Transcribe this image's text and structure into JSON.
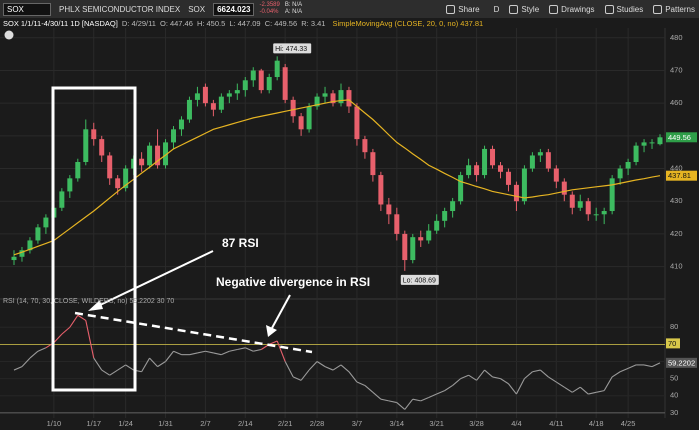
{
  "toolbar": {
    "symbol": "SOX",
    "name": "PHLX SEMICONDUCTOR INDEX",
    "exchange_symbol": "SOX",
    "last": "6624.023",
    "change": "-2.3589",
    "change_pct": "-0.04%",
    "bid": "B: N/A",
    "ask": "A: N/A",
    "buttons": [
      "Share",
      "D",
      "Style",
      "Drawings",
      "Studies",
      "Patterns"
    ]
  },
  "chart_data": [
    {
      "type": "candlestick",
      "title": "SOX 1/1/11-4/30/11 1D [NASDAQ]",
      "date_label": "D: 4/29/11",
      "ohlc_labels": [
        "O:",
        "H:",
        "L:",
        "C:"
      ],
      "range_label": "R: 3.41",
      "hi_label": "Hi:",
      "lo_label": "Lo:",
      "annotations": [
        "87 RSI",
        "Negative divergence in RSI"
      ],
      "up_color": "#3dbb60",
      "down_color": "#e8606c",
      "grid": true,
      "ylim": [
        401,
        483
      ],
      "yticks": [
        410,
        420,
        430,
        440,
        450,
        460,
        470,
        480
      ],
      "categories": [
        null,
        null,
        null,
        null,
        null,
        "1/10",
        null,
        null,
        null,
        null,
        "1/17",
        null,
        null,
        null,
        "1/24",
        null,
        null,
        null,
        null,
        "1/31",
        null,
        null,
        null,
        null,
        "2/7",
        null,
        null,
        null,
        null,
        "2/14",
        null,
        null,
        null,
        null,
        "2/21",
        null,
        null,
        null,
        "2/28",
        null,
        null,
        null,
        null,
        "3/7",
        null,
        null,
        null,
        null,
        "3/14",
        null,
        null,
        null,
        null,
        "3/21",
        null,
        null,
        null,
        null,
        "3/28",
        null,
        null,
        null,
        null,
        "4/4",
        null,
        null,
        null,
        null,
        "4/11",
        null,
        null,
        null,
        null,
        "4/18",
        null,
        null,
        null,
        "4/25",
        null,
        null,
        null,
        null
      ],
      "candles": [
        [
          412,
          415,
          410.5,
          413
        ],
        [
          413,
          416,
          411.5,
          415
        ],
        [
          415,
          419,
          414,
          418
        ],
        [
          418,
          423,
          417,
          422
        ],
        [
          422,
          426,
          420,
          425
        ],
        [
          425,
          429,
          423,
          428
        ],
        [
          428,
          434,
          427,
          433
        ],
        [
          433,
          438,
          431,
          437
        ],
        [
          437,
          443,
          436,
          442
        ],
        [
          442,
          455,
          441,
          452
        ],
        [
          452,
          454,
          447,
          449
        ],
        [
          449,
          450,
          442,
          444
        ],
        [
          444,
          445,
          435,
          437
        ],
        [
          437,
          438,
          432,
          434
        ],
        [
          434,
          441,
          433,
          440
        ],
        [
          440,
          444,
          438,
          443
        ],
        [
          443,
          445,
          439,
          441
        ],
        [
          441,
          448,
          440,
          447
        ],
        [
          447,
          452,
          440,
          441
        ],
        [
          441,
          449,
          440,
          448
        ],
        [
          448,
          453,
          446,
          452
        ],
        [
          452,
          456,
          450,
          455
        ],
        [
          455,
          462,
          454,
          461
        ],
        [
          461,
          465,
          459,
          463
        ],
        [
          465,
          466,
          459,
          460
        ],
        [
          460,
          461,
          456,
          458
        ],
        [
          458,
          463,
          457,
          462
        ],
        [
          462,
          464,
          460,
          463
        ],
        [
          463,
          466,
          461,
          464
        ],
        [
          464,
          468,
          462,
          467
        ],
        [
          467,
          471,
          465,
          470
        ],
        [
          470,
          470.5,
          463,
          464
        ],
        [
          464,
          469,
          463,
          468
        ],
        [
          468,
          474.33,
          467,
          473
        ],
        [
          471,
          472,
          460,
          461
        ],
        [
          461,
          462,
          454,
          456
        ],
        [
          456,
          457,
          450,
          452
        ],
        [
          452,
          460,
          451,
          459
        ],
        [
          459,
          463,
          458,
          462
        ],
        [
          462,
          465,
          460,
          463
        ],
        [
          463,
          464,
          459,
          460
        ],
        [
          460,
          466,
          459,
          464
        ],
        [
          464,
          465,
          457,
          459
        ],
        [
          459,
          460,
          447,
          449
        ],
        [
          449,
          450,
          443,
          445
        ],
        [
          445,
          446,
          436,
          438
        ],
        [
          438,
          439,
          427,
          429
        ],
        [
          429,
          431,
          423,
          426
        ],
        [
          426,
          428,
          418,
          420
        ],
        [
          420,
          421,
          408.69,
          412
        ],
        [
          412,
          420,
          411,
          419
        ],
        [
          419,
          421,
          416,
          418
        ],
        [
          418,
          423,
          417,
          421
        ],
        [
          421,
          426,
          420,
          424
        ],
        [
          424,
          428,
          422,
          427
        ],
        [
          427,
          431,
          425,
          430
        ],
        [
          430,
          439,
          429,
          438
        ],
        [
          438,
          443,
          437,
          441
        ],
        [
          441,
          442,
          436,
          438
        ],
        [
          438,
          447,
          437,
          446
        ],
        [
          446,
          447,
          440,
          441
        ],
        [
          441,
          442,
          437,
          439
        ],
        [
          439,
          440,
          433,
          435
        ],
        [
          435,
          436,
          427,
          430
        ],
        [
          430,
          441,
          429,
          440
        ],
        [
          440,
          445,
          439,
          444
        ],
        [
          444,
          446,
          442,
          445
        ],
        [
          445,
          446,
          439,
          440
        ],
        [
          440,
          441,
          434,
          436
        ],
        [
          436,
          437,
          430,
          432
        ],
        [
          432,
          433,
          426,
          428
        ],
        [
          428,
          432,
          427,
          430
        ],
        [
          430,
          431,
          424,
          426
        ],
        [
          426,
          428,
          424,
          426
        ],
        [
          426,
          428,
          423,
          427
        ],
        [
          427,
          438,
          426,
          437
        ],
        [
          437,
          441,
          435,
          440
        ],
        [
          440,
          443,
          438,
          442
        ],
        [
          442,
          448,
          441,
          447
        ],
        [
          447,
          449,
          445,
          448
        ],
        [
          448,
          449,
          446,
          448
        ],
        [
          447.46,
          450.5,
          447.09,
          449.56
        ]
      ],
      "series": [
        {
          "name": "SimpleMovingAvg (CLOSE, 20, 0, no)",
          "color": "#e6b422",
          "values": [
            413.6,
            414.4,
            415.3,
            416.2,
            417.1,
            418,
            419.8,
            421.6,
            423.4,
            425.2,
            427,
            429,
            431,
            433,
            434.9,
            436.7,
            438.6,
            440.4,
            442.3,
            444.1,
            446,
            447.2,
            448.4,
            449.6,
            450.8,
            452,
            452.7,
            453.4,
            454.1,
            454.8,
            455.5,
            456,
            456.5,
            457,
            457.5,
            458,
            458.5,
            459,
            459.5,
            460,
            460.5,
            460.8,
            461,
            459,
            457,
            455,
            452.7,
            450.3,
            448,
            446.3,
            444.5,
            442.8,
            441,
            439.8,
            438.5,
            437.3,
            436,
            435.3,
            434.5,
            433.8,
            433,
            432.5,
            432,
            431.5,
            431,
            431.3,
            431.7,
            432,
            432.5,
            433,
            433.5,
            433.8,
            434.1,
            434.4,
            434.7,
            435,
            435.5,
            436,
            436.5,
            436.9,
            437.4,
            437.81
          ]
        }
      ]
    },
    {
      "type": "line",
      "title": "RSI (14, 70, 30, CLOSE, WILDERS, no)",
      "levels": [
        70,
        30
      ],
      "level_colors": [
        "#d8c84a",
        "#777777"
      ],
      "overbought_color": "#e8606c",
      "ylim": [
        27,
        93
      ],
      "yticks": [
        30,
        40,
        50,
        60,
        70,
        80
      ],
      "series": [
        {
          "name": "RSI",
          "color": "#9a9a9a",
          "values": [
            55,
            57,
            62,
            66,
            68,
            71,
            76,
            80,
            87,
            84,
            62,
            55,
            52,
            55,
            58,
            55,
            54,
            62,
            57,
            60,
            66,
            64,
            64,
            65,
            66,
            65,
            64,
            66,
            67,
            68,
            66,
            67,
            70,
            72,
            60,
            51,
            49,
            55,
            60,
            57,
            55,
            58,
            54,
            48,
            46,
            42,
            38,
            37,
            36,
            32,
            38,
            37,
            39,
            41,
            43,
            46,
            50,
            52,
            49,
            55,
            51,
            50,
            47,
            41,
            50,
            54,
            55,
            51,
            48,
            45,
            42,
            45,
            41,
            42,
            43,
            51,
            54,
            56,
            58,
            58,
            57,
            59.2202
          ]
        }
      ]
    }
  ]
}
